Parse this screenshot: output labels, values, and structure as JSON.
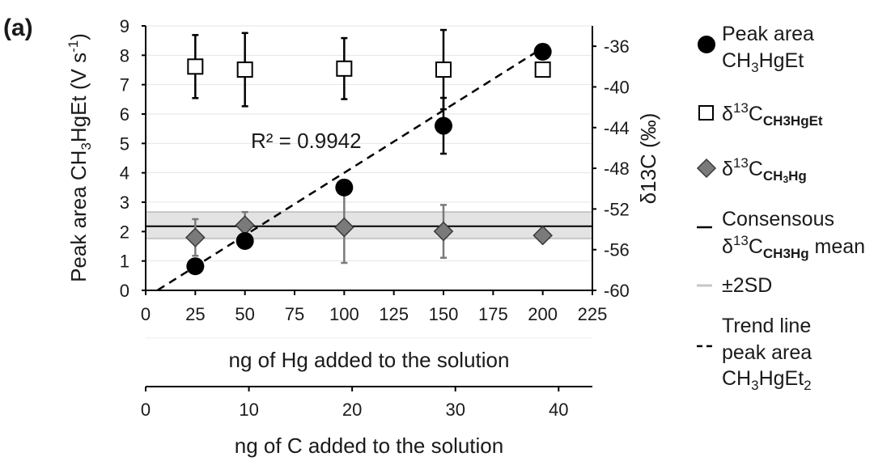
{
  "panel_label": "(a)",
  "chart_data": {
    "type": "scatter",
    "xlabel": "ng of Hg added to the solution",
    "xlim": [
      0,
      225
    ],
    "x_ticks": [
      0,
      25,
      50,
      75,
      100,
      125,
      150,
      175,
      200,
      225
    ],
    "y_left": {
      "label_parts": [
        "Peak area CH",
        "3",
        "HgEt (V s",
        "-1",
        ")"
      ],
      "ylim": [
        0,
        9
      ],
      "ticks": [
        0,
        1,
        2,
        3,
        4,
        5,
        6,
        7,
        8,
        9
      ]
    },
    "y_right": {
      "label": "δ13C (‰)",
      "ylim": [
        -60,
        -34
      ],
      "ticks": [
        -60,
        -56,
        -52,
        -48,
        -44,
        -40,
        -36
      ]
    },
    "secondary_x": {
      "label": "ng of C added to the solution",
      "ticks": [
        0,
        10,
        20,
        30,
        40
      ],
      "hg_per_c": 5.2
    },
    "r2_annotation": "R² = 0.9942",
    "series": [
      {
        "key": "peak_area",
        "axis": "left",
        "marker": "circle",
        "color": "#000000",
        "legend_parts": [
          "Peak area",
          "CH",
          "3",
          "HgEt"
        ],
        "points": [
          {
            "x": 25,
            "y": 0.82
          },
          {
            "x": 50,
            "y": 1.68
          },
          {
            "x": 100,
            "y": 3.5
          },
          {
            "x": 150,
            "y": 5.6,
            "err": 0.95
          },
          {
            "x": 200,
            "y": 8.12
          }
        ]
      },
      {
        "key": "d13C_CH3HgEt",
        "axis": "right",
        "marker": "square",
        "color": "#ffffff",
        "legend_parts": [
          "δ",
          "13",
          "C",
          "CH3HgEt"
        ],
        "points": [
          {
            "x": 25,
            "y": -38.0,
            "err": 3.1
          },
          {
            "x": 50,
            "y": -38.3,
            "err": 3.6
          },
          {
            "x": 100,
            "y": -38.2,
            "err": 3.0
          },
          {
            "x": 150,
            "y": -38.3,
            "err": 3.9
          },
          {
            "x": 200,
            "y": -38.3
          }
        ]
      },
      {
        "key": "d13C_CH3Hg",
        "axis": "right",
        "marker": "diamond",
        "color": "#7a7a7a",
        "legend_parts": [
          "δ",
          "13",
          "C",
          "CH",
          "3",
          "Hg"
        ],
        "points": [
          {
            "x": 25,
            "y": -54.8,
            "err": 1.8
          },
          {
            "x": 50,
            "y": -53.6,
            "err": 1.3
          },
          {
            "x": 100,
            "y": -53.8,
            "err": 3.5
          },
          {
            "x": 150,
            "y": -54.2,
            "err": 2.6
          },
          {
            "x": 200,
            "y": -54.6
          }
        ]
      }
    ],
    "consensus_mean": {
      "y": -53.7,
      "band": [
        -54.9,
        -52.3
      ],
      "legend_parts": [
        "Consensous",
        "δ",
        "13",
        "C",
        "CH3Hg",
        " mean"
      ]
    },
    "sd_legend": "±2SD",
    "trend_line": {
      "slope": 0.0425,
      "intercept": -0.25,
      "x_range": [
        6,
        200
      ],
      "legend_lines": [
        "Trend line",
        "peak area"
      ],
      "legend_chem": [
        "CH",
        "3",
        "HgEt",
        "2"
      ]
    }
  }
}
